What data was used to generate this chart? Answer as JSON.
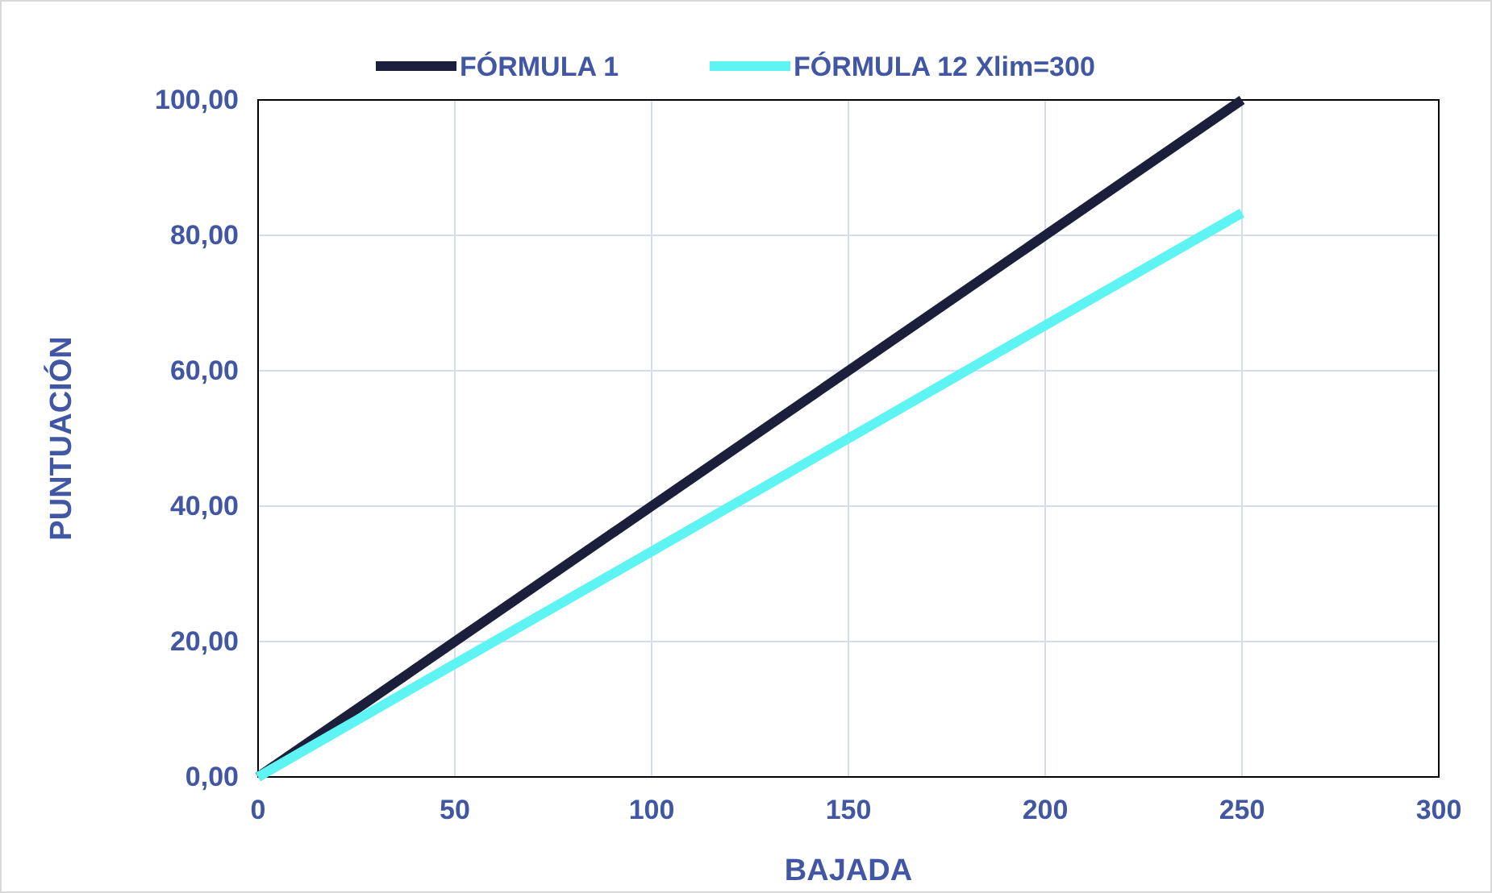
{
  "chart_data": {
    "type": "line",
    "xlabel": "BAJADA",
    "ylabel": "PUNTUACIÓN",
    "series": [
      {
        "name": "FÓRMULA 1",
        "color": "#1b1f3b",
        "x": [
          0,
          50,
          100,
          150,
          200,
          250
        ],
        "values": [
          0,
          20,
          40,
          60,
          80,
          100
        ]
      },
      {
        "name": "FÓRMULA 12 Xlim=300",
        "color": "#5ef4f4",
        "x": [
          0,
          50,
          100,
          150,
          200,
          250
        ],
        "values": [
          0,
          16.7,
          33.3,
          50,
          66.7,
          83.3
        ]
      }
    ],
    "xlim": [
      0,
      300
    ],
    "xticks": [
      0,
      50,
      100,
      150,
      200,
      250,
      300
    ],
    "ylim": [
      0,
      100
    ],
    "yticks": [
      {
        "value": 0,
        "label": "0,00"
      },
      {
        "value": 20,
        "label": "20,00"
      },
      {
        "value": 40,
        "label": "40,00"
      },
      {
        "value": 60,
        "label": "60,00"
      },
      {
        "value": 80,
        "label": "80,00"
      },
      {
        "value": 100,
        "label": "100,00"
      }
    ],
    "grid": true,
    "legend": "top",
    "marker": "none",
    "line_style": "solid"
  }
}
